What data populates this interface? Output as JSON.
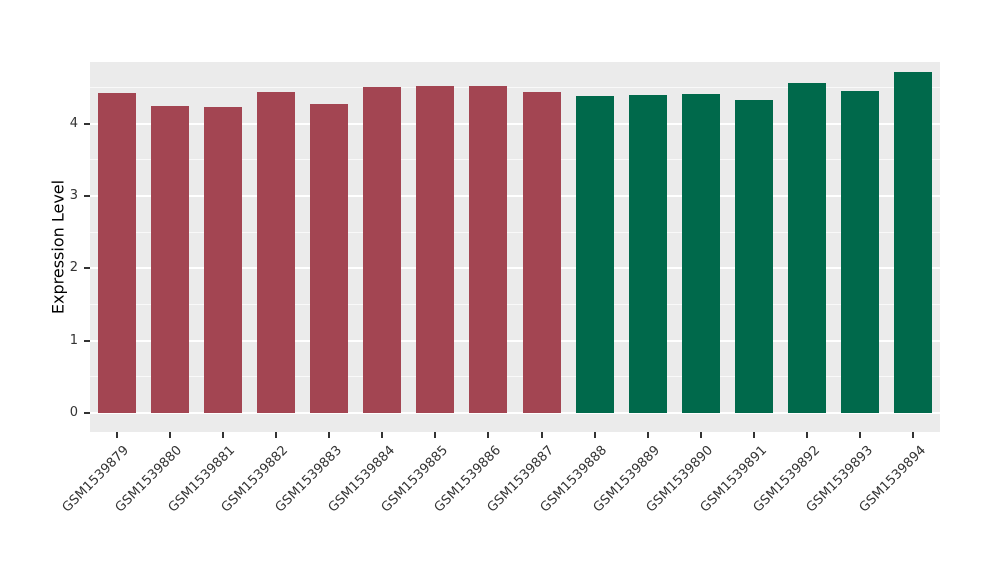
{
  "chart_data": {
    "type": "bar",
    "title": "",
    "xlabel": "",
    "ylabel": "Expression Level",
    "categories": [
      "GSM1539879",
      "GSM1539880",
      "GSM1539881",
      "GSM1539882",
      "GSM1539883",
      "GSM1539884",
      "GSM1539885",
      "GSM1539886",
      "GSM1539887",
      "GSM1539888",
      "GSM1539889",
      "GSM1539890",
      "GSM1539891",
      "GSM1539892",
      "GSM1539893",
      "GSM1539894"
    ],
    "values": [
      4.42,
      4.24,
      4.23,
      4.43,
      4.27,
      4.5,
      4.52,
      4.52,
      4.43,
      4.38,
      4.39,
      4.41,
      4.32,
      4.56,
      4.45,
      4.71
    ],
    "groups": [
      "A",
      "A",
      "A",
      "A",
      "A",
      "A",
      "A",
      "A",
      "A",
      "B",
      "B",
      "B",
      "B",
      "B",
      "B",
      "B"
    ],
    "group_colors": {
      "A": "#A34552",
      "B": "#00694B"
    },
    "ylim": [
      0,
      4.85
    ],
    "yticks": [
      "0",
      "1",
      "2",
      "3",
      "4"
    ],
    "grid": true,
    "legend": "none",
    "panel_bg": "#EBEBEB",
    "grid_color": "#FFFFFF"
  }
}
